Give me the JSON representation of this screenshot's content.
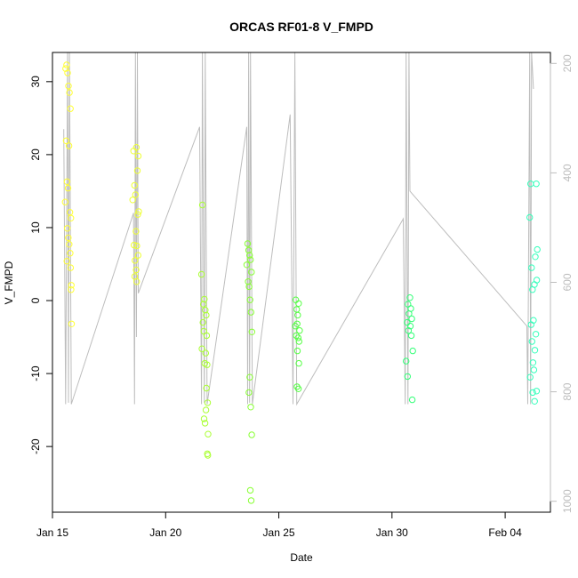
{
  "chart_data": {
    "type": "scatter",
    "title": "ORCAS RF01-8 V_FMPD",
    "xlabel": "Date",
    "ylabel": "V_FMPD",
    "xlim": [
      "2016-01-15T00:00",
      "2016-02-06T00:00"
    ],
    "ylim": [
      -29,
      34
    ],
    "y_ticks": [
      -20,
      -10,
      0,
      10,
      20,
      30
    ],
    "x_ticks": [
      {
        "label": "Jan 15",
        "date": "2016-01-15T00:00"
      },
      {
        "label": "Jan 20",
        "date": "2016-01-20T00:00"
      },
      {
        "label": "Jan 25",
        "date": "2016-01-25T00:00"
      },
      {
        "label": "Jan 30",
        "date": "2016-01-30T00:00"
      },
      {
        "label": "Feb 04",
        "date": "2016-02-04T00:00"
      }
    ],
    "right_axis": {
      "reversed": true,
      "range": [
        1020,
        180
      ],
      "ticks": [
        200,
        400,
        600,
        800,
        1000
      ],
      "color": "#bdbdbd"
    },
    "grid": false,
    "series": [
      {
        "color": "#ffff33",
        "points": [
          [
            "2016-01-15T14:00",
            31.8
          ],
          [
            "2016-01-15T15:00",
            32.3
          ],
          [
            "2016-01-15T16:00",
            31.2
          ],
          [
            "2016-01-15T17:00",
            29.4
          ],
          [
            "2016-01-15T18:00",
            28.5
          ],
          [
            "2016-01-15T19:00",
            26.3
          ],
          [
            "2016-01-15T14:30",
            21.9
          ],
          [
            "2016-01-15T17:30",
            21.2
          ],
          [
            "2016-01-15T15:30",
            16.3
          ],
          [
            "2016-01-15T16:30",
            15.4
          ],
          [
            "2016-01-15T13:30",
            13.5
          ],
          [
            "2016-01-15T18:30",
            12.1
          ],
          [
            "2016-01-15T19:30",
            11.3
          ],
          [
            "2016-01-15T15:45",
            9.9
          ],
          [
            "2016-01-15T16:45",
            8.6
          ],
          [
            "2016-01-15T17:45",
            7.7
          ],
          [
            "2016-01-15T18:45",
            6.5
          ],
          [
            "2016-01-15T15:15",
            5.4
          ],
          [
            "2016-01-15T19:15",
            4.5
          ],
          [
            "2016-01-15T20:00",
            2.1
          ],
          [
            "2016-01-15T19:45",
            1.5
          ],
          [
            "2016-01-15T20:15",
            -3.2
          ]
        ]
      },
      {
        "color": "#eeff33",
        "points": [
          [
            "2016-01-18T14:00",
            20.5
          ],
          [
            "2016-01-18T17:00",
            21.0
          ],
          [
            "2016-01-18T19:00",
            19.8
          ],
          [
            "2016-01-18T18:00",
            17.8
          ],
          [
            "2016-01-18T15:00",
            15.8
          ],
          [
            "2016-01-18T16:00",
            14.5
          ],
          [
            "2016-01-18T13:00",
            13.8
          ],
          [
            "2016-01-18T19:30",
            12.2
          ],
          [
            "2016-01-18T18:30",
            11.8
          ],
          [
            "2016-01-18T16:30",
            9.5
          ],
          [
            "2016-01-18T14:30",
            7.6
          ],
          [
            "2016-01-18T17:30",
            7.5
          ],
          [
            "2016-01-18T18:45",
            6.2
          ],
          [
            "2016-01-18T15:30",
            5.5
          ],
          [
            "2016-01-18T16:45",
            4.2
          ],
          [
            "2016-01-18T15:15",
            3.3
          ],
          [
            "2016-01-18T17:15",
            2.6
          ]
        ]
      },
      {
        "color": "#aaff33",
        "points": [
          [
            "2016-01-21T15:00",
            13.1
          ],
          [
            "2016-01-21T14:00",
            3.6
          ],
          [
            "2016-01-21T17:00",
            0.2
          ],
          [
            "2016-01-21T16:00",
            -0.5
          ],
          [
            "2016-01-21T18:00",
            -1.3
          ],
          [
            "2016-01-21T19:00",
            -2.0
          ],
          [
            "2016-01-21T15:30",
            -3.0
          ],
          [
            "2016-01-21T16:30",
            -4.2
          ],
          [
            "2016-01-21T19:30",
            -4.8
          ],
          [
            "2016-01-21T14:30",
            -6.6
          ],
          [
            "2016-01-21T18:30",
            -7.2
          ],
          [
            "2016-01-21T17:30",
            -8.6
          ],
          [
            "2016-01-21T20:00",
            -8.8
          ],
          [
            "2016-01-21T19:15",
            -12.0
          ],
          [
            "2016-01-21T20:30",
            -14.0
          ],
          [
            "2016-01-21T18:45",
            -15.0
          ],
          [
            "2016-01-21T16:45",
            -16.2
          ],
          [
            "2016-01-21T17:45",
            -16.8
          ],
          [
            "2016-01-21T21:00",
            -18.3
          ],
          [
            "2016-01-21T20:45",
            -21.2
          ],
          [
            "2016-01-21T20:15",
            -21.0
          ]
        ]
      },
      {
        "color": "#88ff33",
        "points": [
          [
            "2016-01-23T15:00",
            7.8
          ],
          [
            "2016-01-23T16:00",
            6.9
          ],
          [
            "2016-01-23T17:00",
            6.2
          ],
          [
            "2016-01-23T18:00",
            5.6
          ],
          [
            "2016-01-23T14:00",
            4.9
          ],
          [
            "2016-01-23T19:00",
            3.9
          ],
          [
            "2016-01-23T15:30",
            2.6
          ],
          [
            "2016-01-23T16:30",
            1.9
          ],
          [
            "2016-01-23T17:30",
            0.1
          ],
          [
            "2016-01-23T18:30",
            -1.6
          ],
          [
            "2016-01-23T19:30",
            -4.3
          ],
          [
            "2016-01-23T17:15",
            -10.5
          ],
          [
            "2016-01-23T16:15",
            -12.6
          ],
          [
            "2016-01-23T18:15",
            -14.6
          ],
          [
            "2016-01-23T19:15",
            -18.4
          ],
          [
            "2016-01-23T17:45",
            -26.0
          ],
          [
            "2016-01-23T18:45",
            -27.4
          ]
        ]
      },
      {
        "color": "#55ff44",
        "points": [
          [
            "2016-01-25T18:00",
            0.1
          ],
          [
            "2016-01-25T21:00",
            -0.4
          ],
          [
            "2016-01-25T19:00",
            -1.2
          ],
          [
            "2016-01-25T20:00",
            -2.0
          ],
          [
            "2016-01-25T19:30",
            -3.2
          ],
          [
            "2016-01-25T17:30",
            -3.5
          ],
          [
            "2016-01-25T22:00",
            -4.1
          ],
          [
            "2016-01-25T18:30",
            -4.8
          ],
          [
            "2016-01-25T20:30",
            -5.1
          ],
          [
            "2016-01-25T21:30",
            -5.6
          ],
          [
            "2016-01-25T19:45",
            -6.9
          ],
          [
            "2016-01-25T21:15",
            -8.6
          ],
          [
            "2016-01-25T20:45",
            -12.1
          ],
          [
            "2016-01-25T19:15",
            -11.8
          ]
        ]
      },
      {
        "color": "#33ff77",
        "points": [
          [
            "2016-01-30T19:00",
            0.4
          ],
          [
            "2016-01-30T17:00",
            -0.5
          ],
          [
            "2016-01-30T20:00",
            -1.1
          ],
          [
            "2016-01-30T18:00",
            -1.8
          ],
          [
            "2016-01-30T21:00",
            -2.5
          ],
          [
            "2016-01-30T16:00",
            -3.0
          ],
          [
            "2016-01-30T19:30",
            -3.5
          ],
          [
            "2016-01-30T17:30",
            -4.1
          ],
          [
            "2016-01-30T20:30",
            -4.8
          ],
          [
            "2016-01-30T22:00",
            -6.9
          ],
          [
            "2016-01-30T15:00",
            -8.3
          ],
          [
            "2016-01-30T16:30",
            -10.4
          ],
          [
            "2016-01-30T21:30",
            -13.6
          ]
        ]
      },
      {
        "color": "#33ffbb",
        "points": [
          [
            "2016-02-05T03:00",
            16.0
          ],
          [
            "2016-02-05T09:00",
            16.0
          ],
          [
            "2016-02-05T02:00",
            11.4
          ],
          [
            "2016-02-05T10:00",
            7.0
          ],
          [
            "2016-02-05T08:00",
            6.0
          ],
          [
            "2016-02-05T04:00",
            4.5
          ],
          [
            "2016-02-05T09:30",
            2.8
          ],
          [
            "2016-02-05T07:00",
            2.2
          ],
          [
            "2016-02-05T05:00",
            1.5
          ],
          [
            "2016-02-05T06:00",
            -2.7
          ],
          [
            "2016-02-05T03:30",
            -3.3
          ],
          [
            "2016-02-05T08:30",
            -4.6
          ],
          [
            "2016-02-05T04:30",
            -5.6
          ],
          [
            "2016-02-05T07:30",
            -6.8
          ],
          [
            "2016-02-05T05:30",
            -8.5
          ],
          [
            "2016-02-05T06:30",
            -9.5
          ],
          [
            "2016-02-05T02:30",
            -10.5
          ],
          [
            "2016-02-05T09:15",
            -12.4
          ],
          [
            "2016-02-05T05:15",
            -12.6
          ],
          [
            "2016-02-05T07:15",
            -13.8
          ]
        ]
      }
    ],
    "overlay_line": {
      "color": "#bdbdbd",
      "points": [
        [
          "2016-01-15T12:00",
          23.5
        ],
        [
          "2016-01-15T14:00",
          -14.2
        ],
        [
          "2016-01-15T16:00",
          34.0
        ],
        [
          "2016-01-15T17:00",
          -14.0
        ],
        [
          "2016-01-15T18:00",
          34.0
        ],
        [
          "2016-01-15T20:00",
          -14.2
        ],
        [
          "2016-01-18T14:00",
          12.0
        ],
        [
          "2016-01-18T15:00",
          -14.2
        ],
        [
          "2016-01-18T16:00",
          34.0
        ],
        [
          "2016-01-18T17:00",
          -5.0
        ],
        [
          "2016-01-18T18:00",
          34.0
        ],
        [
          "2016-01-18T19:00",
          1.0
        ],
        [
          "2016-01-21T12:00",
          23.8
        ],
        [
          "2016-01-21T14:00",
          -14.2
        ],
        [
          "2016-01-21T15:00",
          34.0
        ],
        [
          "2016-01-21T17:00",
          -14.0
        ],
        [
          "2016-01-21T18:00",
          34.0
        ],
        [
          "2016-01-21T20:00",
          -14.2
        ],
        [
          "2016-01-23T14:00",
          23.8
        ],
        [
          "2016-01-23T15:00",
          -14.2
        ],
        [
          "2016-01-23T16:00",
          34.0
        ],
        [
          "2016-01-23T17:00",
          -14.0
        ],
        [
          "2016-01-23T18:00",
          34.0
        ],
        [
          "2016-01-23T20:00",
          -14.2
        ],
        [
          "2016-01-25T12:00",
          25.5
        ],
        [
          "2016-01-25T15:00",
          -14.2
        ],
        [
          "2016-01-25T17:00",
          34.0
        ],
        [
          "2016-01-25T19:00",
          -14.2
        ],
        [
          "2016-01-30T12:00",
          11.2
        ],
        [
          "2016-01-30T14:00",
          -14.2
        ],
        [
          "2016-01-30T15:00",
          34.0
        ],
        [
          "2016-01-30T17:00",
          -14.2
        ],
        [
          "2016-01-30T18:00",
          34.0
        ],
        [
          "2016-01-30T19:00",
          15.0
        ],
        [
          "2016-02-04T23:00",
          -3.5
        ],
        [
          "2016-02-05T00:00",
          -14.2
        ],
        [
          "2016-02-05T02:00",
          34.0
        ],
        [
          "2016-02-05T03:00",
          -14.2
        ],
        [
          "2016-02-05T04:00",
          34.0
        ],
        [
          "2016-02-05T06:00",
          29.0
        ]
      ]
    }
  }
}
